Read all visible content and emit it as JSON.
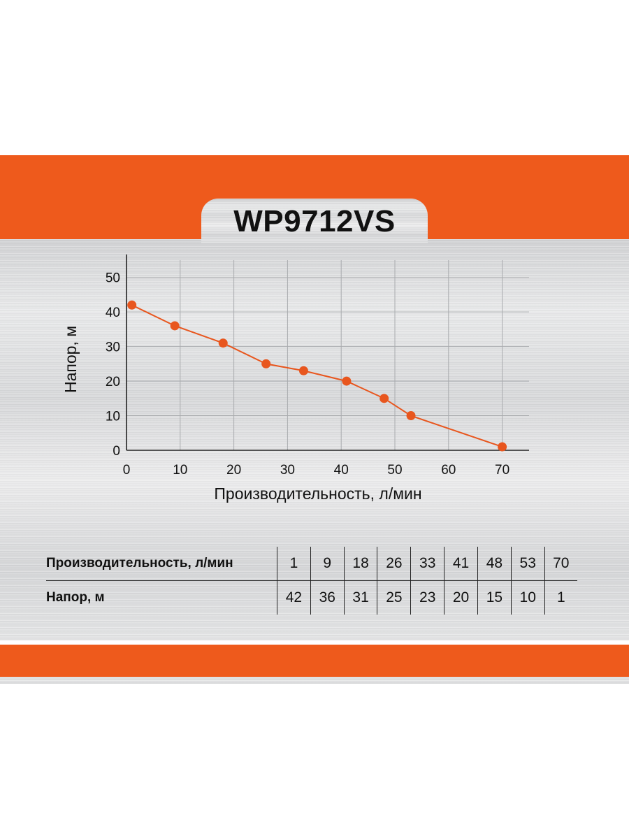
{
  "title": "WP9712VS",
  "chart_data": {
    "type": "line",
    "title": "WP9712VS",
    "xlabel": "Производительность, л/мин",
    "ylabel": "Напор, м",
    "xlim": [
      0,
      75
    ],
    "ylim": [
      0,
      55
    ],
    "x_ticks": [
      0,
      10,
      20,
      30,
      40,
      50,
      60,
      70
    ],
    "y_ticks": [
      0,
      10,
      20,
      30,
      40,
      50
    ],
    "grid": true,
    "series": [
      {
        "x": [
          1,
          9,
          18,
          26,
          33,
          41,
          48,
          53,
          70
        ],
        "y": [
          42,
          36,
          31,
          25,
          23,
          20,
          15,
          10,
          1
        ]
      }
    ],
    "color": "#e8561e"
  },
  "table": {
    "rows": [
      {
        "label": "Производительность, л/мин",
        "values": [
          "1",
          "9",
          "18",
          "26",
          "33",
          "41",
          "48",
          "53",
          "70"
        ]
      },
      {
        "label": "Напор, м",
        "values": [
          "42",
          "36",
          "31",
          "25",
          "23",
          "20",
          "15",
          "10",
          "1"
        ]
      }
    ]
  }
}
